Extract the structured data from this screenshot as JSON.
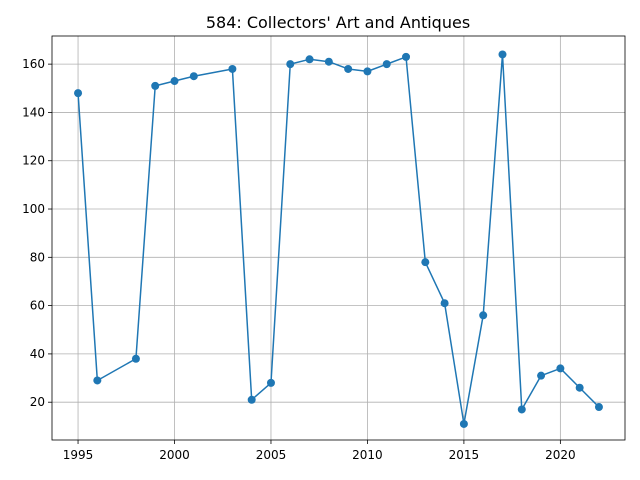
{
  "chart_data": {
    "type": "line",
    "title": "584: Collectors' Art and Antiques",
    "xlabel": "",
    "ylabel": "",
    "grid": true,
    "xlim": [
      1993.65,
      2023.35
    ],
    "ylim": [
      4.35,
      171.65
    ],
    "xticks": [
      1995,
      2000,
      2005,
      2010,
      2015,
      2020
    ],
    "yticks": [
      20,
      40,
      60,
      80,
      100,
      120,
      140,
      160
    ],
    "series": [
      {
        "name": "584",
        "color": "#1f77b4",
        "x": [
          1995,
          1996,
          1998,
          1999,
          2000,
          2001,
          2003,
          2004,
          2005,
          2006,
          2007,
          2008,
          2009,
          2010,
          2011,
          2012,
          2013,
          2014,
          2015,
          2016,
          2017,
          2018,
          2019,
          2020,
          2021,
          2022
        ],
        "y": [
          148,
          29,
          38,
          151,
          153,
          155,
          158,
          21,
          28,
          160,
          162,
          161,
          158,
          157,
          160,
          163,
          78,
          61,
          11,
          56,
          164,
          17,
          31,
          34,
          26,
          18
        ]
      }
    ]
  }
}
